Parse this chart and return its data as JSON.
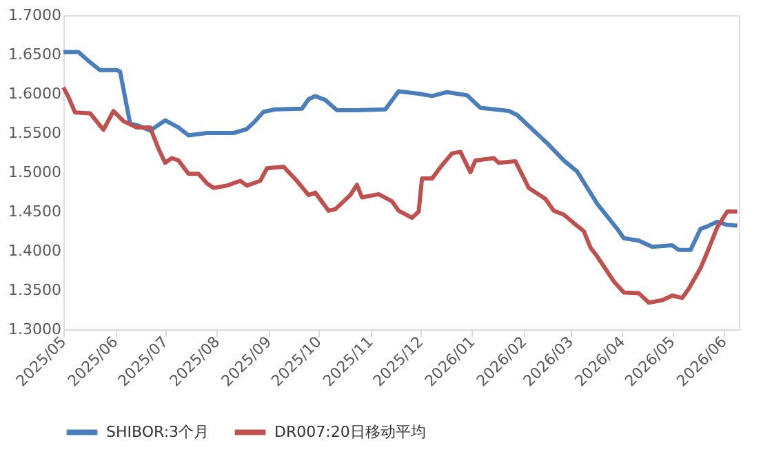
{
  "chart_data": {
    "type": "line",
    "xlim": [
      "2025-05-01",
      "2026-06-10"
    ],
    "xticks": [
      {
        "value": "2025-05-01",
        "label": "2025/05"
      },
      {
        "value": "2025-06-01",
        "label": "2025/06"
      },
      {
        "value": "2025-07-01",
        "label": "2025/07"
      },
      {
        "value": "2025-08-01",
        "label": "2025/08"
      },
      {
        "value": "2025-09-01",
        "label": "2025/09"
      },
      {
        "value": "2025-10-01",
        "label": "2025/10"
      },
      {
        "value": "2025-11-01",
        "label": "2025/11"
      },
      {
        "value": "2025-12-01",
        "label": "2025/12"
      },
      {
        "value": "2026-01-01",
        "label": "2026/01"
      },
      {
        "value": "2026-02-01",
        "label": "2026/02"
      },
      {
        "value": "2026-03-01",
        "label": "2026/03"
      },
      {
        "value": "2026-04-01",
        "label": "2026/04"
      },
      {
        "value": "2026-05-01",
        "label": "2026/05"
      },
      {
        "value": "2026-06-01",
        "label": "2026/06"
      }
    ],
    "ylim": [
      1.3,
      1.7
    ],
    "yticks": [
      {
        "value": 1.3,
        "label": "1.3000"
      },
      {
        "value": 1.35,
        "label": "1.3500"
      },
      {
        "value": 1.4,
        "label": "1.4000"
      },
      {
        "value": 1.45,
        "label": "1.4500"
      },
      {
        "value": 1.5,
        "label": "1.5000"
      },
      {
        "value": 1.55,
        "label": "1.5500"
      },
      {
        "value": 1.6,
        "label": "1.6000"
      },
      {
        "value": 1.65,
        "label": "1.6500"
      },
      {
        "value": 1.7,
        "label": "1.7000"
      }
    ],
    "grid": false,
    "legend": "bottom",
    "marker": "none",
    "line_style": "solid",
    "series": [
      {
        "name": "SHIBOR:3个月",
        "color": "#4a7ebb",
        "x": [
          "2025-05-01",
          "2025-05-10",
          "2025-05-17",
          "2025-05-23",
          "2025-06-02",
          "2025-06-04",
          "2025-06-10",
          "2025-06-14",
          "2025-06-22",
          "2025-07-01",
          "2025-07-09",
          "2025-07-15",
          "2025-07-26",
          "2025-08-11",
          "2025-08-19",
          "2025-08-23",
          "2025-08-29",
          "2025-09-05",
          "2025-09-21",
          "2025-09-25",
          "2025-09-29",
          "2025-10-05",
          "2025-10-12",
          "2025-10-24",
          "2025-11-10",
          "2025-11-18",
          "2025-11-30",
          "2025-12-08",
          "2025-12-17",
          "2025-12-29",
          "2026-01-06",
          "2026-01-23",
          "2026-01-28",
          "2026-02-04",
          "2026-02-16",
          "2026-02-25",
          "2026-03-05",
          "2026-03-17",
          "2026-03-29",
          "2026-04-02",
          "2026-04-11",
          "2026-04-19",
          "2026-05-01",
          "2026-05-05",
          "2026-05-12",
          "2026-05-18",
          "2026-05-22",
          "2026-05-28",
          "2026-06-03",
          "2026-06-09"
        ],
        "values": [
          1.653,
          1.653,
          1.64,
          1.63,
          1.63,
          1.628,
          1.562,
          1.56,
          1.553,
          1.566,
          1.557,
          1.547,
          1.55,
          1.55,
          1.555,
          1.563,
          1.577,
          1.58,
          1.581,
          1.593,
          1.597,
          1.592,
          1.579,
          1.579,
          1.58,
          1.603,
          1.6,
          1.597,
          1.602,
          1.598,
          1.582,
          1.578,
          1.573,
          1.559,
          1.535,
          1.515,
          1.501,
          1.46,
          1.428,
          1.416,
          1.413,
          1.405,
          1.407,
          1.401,
          1.401,
          1.428,
          1.431,
          1.437,
          1.433,
          1.432
        ]
      },
      {
        "name": "DR007:20日移动平均",
        "color": "#c0504d",
        "x": [
          "2025-05-01",
          "2025-05-04",
          "2025-05-08",
          "2025-05-17",
          "2025-05-25",
          "2025-05-31",
          "2025-06-06",
          "2025-06-14",
          "2025-06-22",
          "2025-06-27",
          "2025-07-01",
          "2025-07-05",
          "2025-07-09",
          "2025-07-15",
          "2025-07-21",
          "2025-07-26",
          "2025-07-30",
          "2025-08-07",
          "2025-08-15",
          "2025-08-19",
          "2025-08-27",
          "2025-08-31",
          "2025-09-10",
          "2025-09-18",
          "2025-09-25",
          "2025-09-29",
          "2025-10-07",
          "2025-10-11",
          "2025-10-20",
          "2025-10-24",
          "2025-10-27",
          "2025-11-06",
          "2025-11-14",
          "2025-11-18",
          "2025-11-26",
          "2025-11-30",
          "2025-12-02",
          "2025-12-08",
          "2025-12-14",
          "2025-12-20",
          "2025-12-25",
          "2025-12-31",
          "2026-01-03",
          "2026-01-14",
          "2026-01-17",
          "2026-01-27",
          "2026-02-04",
          "2026-02-14",
          "2026-02-19",
          "2026-02-25",
          "2026-03-02",
          "2026-03-09",
          "2026-03-13",
          "2026-03-17",
          "2026-03-27",
          "2026-04-02",
          "2026-04-11",
          "2026-04-17",
          "2026-04-25",
          "2026-05-01",
          "2026-05-07",
          "2026-05-11",
          "2026-05-18",
          "2026-05-22",
          "2026-05-28",
          "2026-06-03",
          "2026-06-09"
        ],
        "values": [
          1.608,
          1.596,
          1.576,
          1.575,
          1.554,
          1.578,
          1.565,
          1.557,
          1.557,
          1.53,
          1.512,
          1.518,
          1.515,
          1.498,
          1.498,
          1.486,
          1.48,
          1.483,
          1.489,
          1.483,
          1.489,
          1.505,
          1.507,
          1.489,
          1.471,
          1.474,
          1.451,
          1.453,
          1.471,
          1.484,
          1.468,
          1.472,
          1.463,
          1.451,
          1.442,
          1.45,
          1.492,
          1.492,
          1.509,
          1.524,
          1.526,
          1.5,
          1.515,
          1.518,
          1.512,
          1.514,
          1.48,
          1.466,
          1.451,
          1.446,
          1.437,
          1.425,
          1.404,
          1.393,
          1.361,
          1.347,
          1.346,
          1.334,
          1.337,
          1.343,
          1.34,
          1.352,
          1.378,
          1.398,
          1.43,
          1.45,
          1.45
        ]
      }
    ]
  }
}
